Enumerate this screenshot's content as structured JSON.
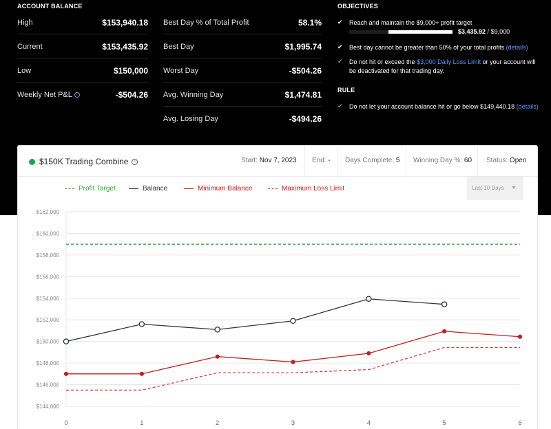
{
  "account_balance": {
    "title": "ACCOUNT BALANCE",
    "left": [
      {
        "label": "High",
        "value": "$153,940.18"
      },
      {
        "label": "Current",
        "value": "$153,435.92"
      },
      {
        "label": "Low",
        "value": "$150,000"
      },
      {
        "label": "Weekly Net P&L",
        "value": "-$504.26"
      }
    ],
    "right": [
      {
        "label": "Best Day % of Total Profit",
        "value": "58.1%"
      },
      {
        "label": "Best Day",
        "value": "$1,995.74"
      },
      {
        "label": "Worst Day",
        "value": "-$504.26"
      },
      {
        "label": "Avg. Winning Day",
        "value": "$1,474.81"
      },
      {
        "label": "Avg. Losing Day",
        "value": "-$494.26"
      }
    ]
  },
  "objectives": {
    "title": "OBJECTIVES",
    "items": [
      {
        "text": "Reach and maintain the $9,000+ profit target",
        "check": "white"
      },
      {
        "text": "Best day cannot be greater than 50% of your total profits",
        "link": "(details)",
        "check": "white"
      },
      {
        "text_before": "Do not hit or exceed the",
        "link": "$3,000 Daily Loss Limit",
        "text_after": "or your account will be deactivated for that trading day.",
        "check": "green"
      }
    ],
    "progress": {
      "fraction": 0.3817,
      "current": "$3,435.92",
      "target": "$9,000"
    }
  },
  "rule": {
    "title": "RULE",
    "text": "Do not let your account balance hit or go below $149,440.18",
    "link": "(details)",
    "check": "green"
  },
  "card": {
    "name": "$150K Trading Combine",
    "status_color": "#17a84a",
    "start_label": "Start:",
    "start_value": "Nov 7, 2023",
    "end_label": "End:",
    "end_value": "-",
    "days_label": "Days Complete:",
    "days_value": "5",
    "winning_label": "Winning Day %:",
    "winning_value": "60",
    "status_label": "Status:",
    "status_value": "Open",
    "range_select": "Last 10 Days"
  },
  "chart_data": {
    "type": "line",
    "x": [
      0,
      1,
      2,
      3,
      4,
      5,
      6
    ],
    "ylim": [
      144000,
      162000
    ],
    "yticks": [
      "$144,000",
      "$146,000",
      "$148,000",
      "$150,000",
      "$152,000",
      "$154,000",
      "$156,000",
      "$158,000",
      "$160,000",
      "$162,000"
    ],
    "series": [
      {
        "name": "Profit Target",
        "color": "#3aa14a",
        "dash": true,
        "values": [
          159000,
          159000,
          159000,
          159000,
          159000,
          159000,
          159000
        ]
      },
      {
        "name": "Balance",
        "color": "#2c3440",
        "dash": false,
        "markers": "hollow",
        "values": [
          150000,
          151600,
          151100,
          151900,
          153940,
          153436,
          null
        ]
      },
      {
        "name": "Minimum Balance",
        "color": "#c21f1f",
        "dash": false,
        "markers": "filled",
        "values": [
          147000,
          147000,
          148600,
          148100,
          148900,
          150940,
          150440
        ]
      },
      {
        "name": "Maximum Loss Limit",
        "color": "#d63a3a",
        "dash": true,
        "values": [
          145500,
          145500,
          147100,
          147100,
          147400,
          149440,
          149440
        ]
      }
    ]
  }
}
